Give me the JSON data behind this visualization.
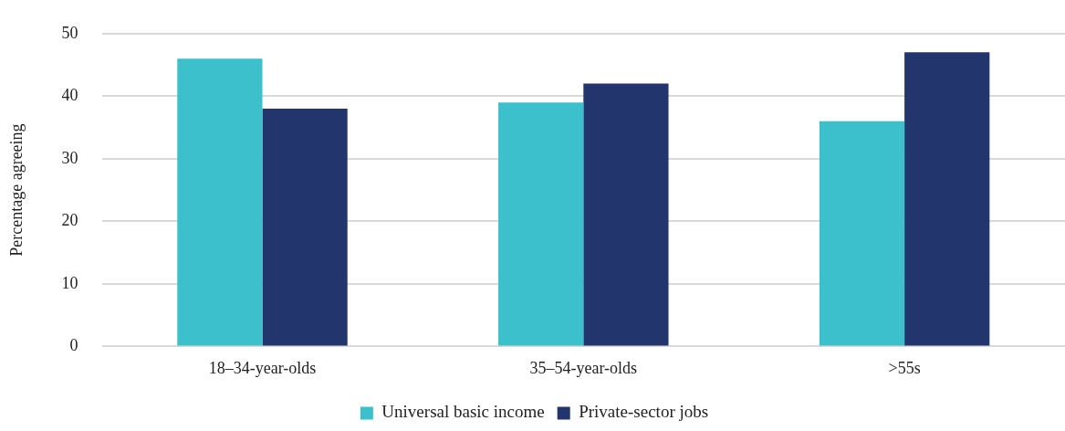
{
  "chart_data": {
    "type": "bar",
    "ylabel": "Percentage agreeing",
    "categories": [
      "18–34-year-olds",
      "35–54-year-olds",
      ">55s"
    ],
    "series": [
      {
        "name": "Universal basic income",
        "color": "#3cc0cc",
        "values": [
          46,
          39,
          36
        ]
      },
      {
        "name": "Private-sector jobs",
        "color": "#22356d",
        "values": [
          38,
          42,
          47
        ]
      }
    ],
    "ylim": [
      0,
      50
    ],
    "yticks": [
      0,
      10,
      20,
      30,
      40,
      50
    ],
    "grid": "y",
    "legend": "bottom"
  }
}
